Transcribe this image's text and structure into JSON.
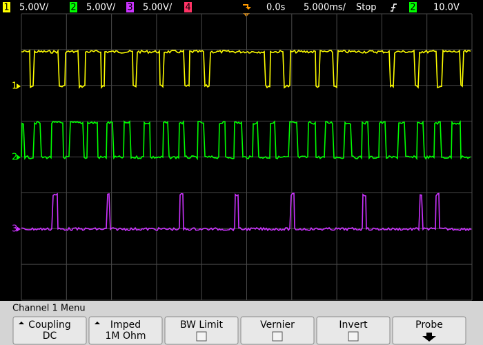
{
  "status_bar": {
    "channels": [
      {
        "number": "1",
        "scale": "5.00V/"
      },
      {
        "number": "2",
        "scale": "5.00V/"
      },
      {
        "number": "3",
        "scale": "5.00V/"
      },
      {
        "number": "4"
      }
    ],
    "time_offset": "0.0s",
    "time_scale": "5.000ms/",
    "run_state": "Stop",
    "trigger_source": "2",
    "trigger_level": "10.0V"
  },
  "channel_markers": [
    "1",
    "2",
    "3"
  ],
  "menu": {
    "title": "Channel 1 Menu",
    "softkeys": [
      {
        "label": "Coupling",
        "value": "DC"
      },
      {
        "label": "Imped",
        "value": "1M Ohm"
      },
      {
        "label": "BW Limit"
      },
      {
        "label": "Vernier"
      },
      {
        "label": "Invert"
      },
      {
        "label": "Probe"
      }
    ]
  }
}
